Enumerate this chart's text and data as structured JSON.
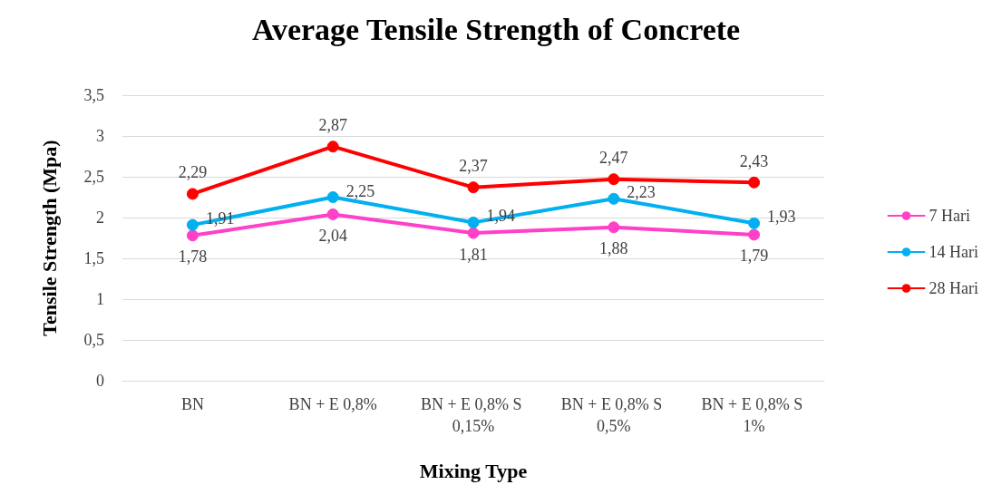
{
  "chart_data": {
    "type": "line",
    "title": "Average Tensile Strength of Concrete",
    "xlabel": "Mixing Type",
    "ylabel": "Tensile Strength (Mpa)",
    "categories": [
      "BN",
      "BN + E 0,8%",
      "BN + E 0,8% S 0,15%",
      "BN + E 0,8% S 0,5%",
      "BN + E 0,8% S 1%"
    ],
    "series": [
      {
        "name": "7 Hari",
        "color": "#ff40c8",
        "values": [
          1.78,
          2.04,
          1.81,
          1.88,
          1.79
        ],
        "value_labels": [
          "1,78",
          "2,04",
          "1,81",
          "1,88",
          "1,79"
        ]
      },
      {
        "name": "14 Hari",
        "color": "#00b0f0",
        "values": [
          1.91,
          2.25,
          1.94,
          2.23,
          1.93
        ],
        "value_labels": [
          "1,91",
          "2,25",
          "1,94",
          "2,23",
          "1,93"
        ]
      },
      {
        "name": "28 Hari",
        "color": "#ff0000",
        "values": [
          2.29,
          2.87,
          2.37,
          2.47,
          2.43
        ],
        "value_labels": [
          "2,29",
          "2,87",
          "2,37",
          "2,47",
          "2,43"
        ]
      }
    ],
    "ylim": [
      0,
      3.5
    ],
    "yticks": [
      0,
      {
        "value": 0.5,
        "label": "0,5"
      },
      1,
      {
        "value": 1.5,
        "label": "1,5"
      },
      2,
      {
        "value": 2.5,
        "label": "2,5"
      },
      3,
      {
        "value": 3.5,
        "label": "3,5"
      }
    ],
    "grid": "y",
    "legend": "right",
    "marker": "circle",
    "line_style": "solid"
  }
}
